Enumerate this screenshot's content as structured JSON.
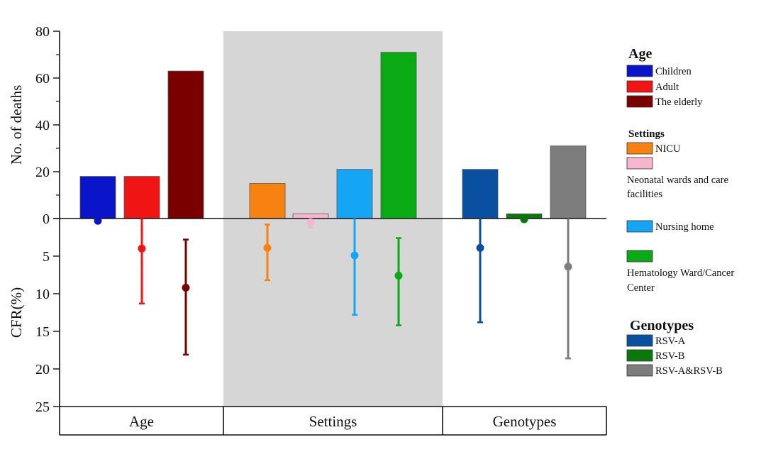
{
  "chart_data": {
    "type": "bar",
    "top_panel": {
      "ylabel": "No. of deaths",
      "ylim": [
        0,
        80
      ],
      "yticks": [
        "0",
        "20",
        "40",
        "60",
        "80"
      ]
    },
    "bottom_panel": {
      "ylabel": "CFR(%)",
      "ylim": [
        0,
        25
      ],
      "yticks": [
        "0",
        "5",
        "10",
        "15",
        "20",
        "25"
      ],
      "type": "point-errorbar"
    },
    "groups": [
      {
        "name": "Age",
        "legend_title": "Age",
        "shaded": false,
        "items": [
          {
            "name": "Children",
            "color": "#0a14c8",
            "deaths": 18,
            "cfr": 0.3,
            "cfr_low": 0,
            "cfr_high": 0.5
          },
          {
            "name": "Adult",
            "color": "#f01414",
            "deaths": 18,
            "cfr": 4.0,
            "cfr_low": 0,
            "cfr_high": 11.3
          },
          {
            "name": "The elderly",
            "color": "#7a0000",
            "deaths": 63,
            "cfr": 9.2,
            "cfr_low": 2.8,
            "cfr_high": 18.1
          }
        ]
      },
      {
        "name": "Settings",
        "legend_title": "Settings",
        "shaded": true,
        "items": [
          {
            "name": "NICU",
            "color": "#f7820f",
            "deaths": 15,
            "cfr": 3.9,
            "cfr_low": 0.8,
            "cfr_high": 8.2
          },
          {
            "name": "Neonatal wards and care facilities",
            "color": "#f7b6d0",
            "deaths": 2,
            "cfr": 0.5,
            "cfr_low": 0,
            "cfr_high": 1.2
          },
          {
            "name": "Nursing home",
            "color": "#14a5f5",
            "deaths": 21,
            "cfr": 4.9,
            "cfr_low": 0,
            "cfr_high": 12.8
          },
          {
            "name": "Hematology Ward/Cancer Center",
            "color": "#0aaa14",
            "deaths": 71,
            "cfr": 7.6,
            "cfr_low": 2.6,
            "cfr_high": 14.2
          }
        ]
      },
      {
        "name": "Genotypes",
        "legend_title": "Genotypes",
        "shaded": false,
        "items": [
          {
            "name": "RSV-A",
            "color": "#0a50a0",
            "deaths": 21,
            "cfr": 3.9,
            "cfr_low": 0,
            "cfr_high": 13.8
          },
          {
            "name": "RSV-B",
            "color": "#0a780a",
            "deaths": 2,
            "cfr": 0.1,
            "cfr_low": 0,
            "cfr_high": 0.2
          },
          {
            "name": "RSV-A&RSV-B",
            "color": "#7d7d7d",
            "deaths": 31,
            "cfr": 6.4,
            "cfr_low": 0,
            "cfr_high": 18.6
          }
        ]
      }
    ],
    "legend_position": "right"
  }
}
